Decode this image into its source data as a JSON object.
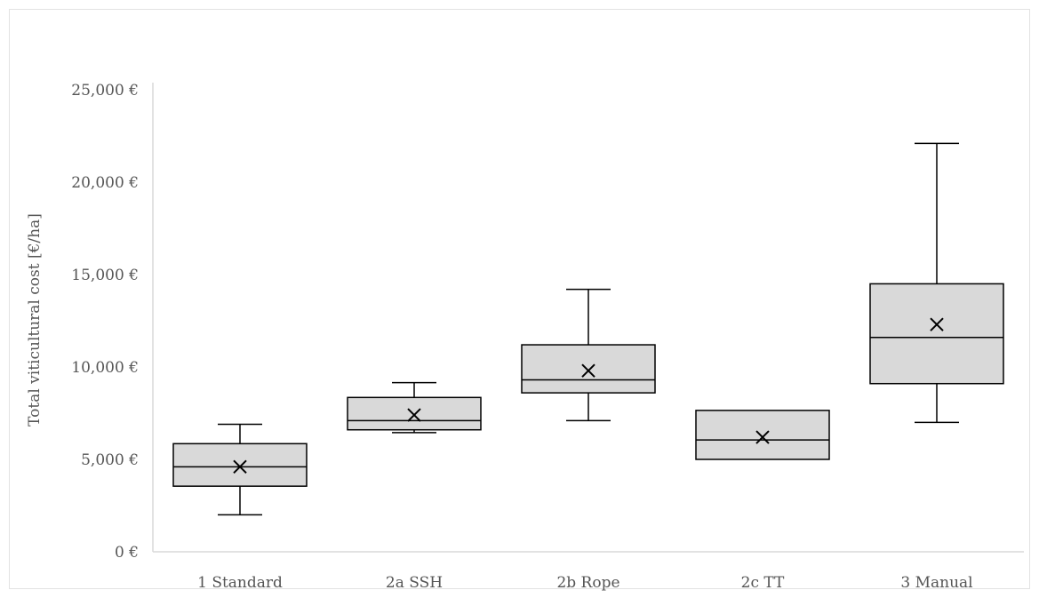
{
  "chart_data": {
    "type": "box",
    "title": "",
    "xlabel": "",
    "ylabel": "Total viticultural cost [€/ha]",
    "ylim": [
      0,
      25000
    ],
    "yticks": [
      0,
      5000,
      10000,
      15000,
      20000,
      25000
    ],
    "ytick_labels": [
      "0 €",
      "5,000 €",
      "10,000 €",
      "15,000 €",
      "20,000 €",
      "25,000 €"
    ],
    "grid": false,
    "categories": [
      "1 Standard",
      "2a SSH",
      "2b Rope",
      "2c TT",
      "3 Manual"
    ],
    "boxes": [
      {
        "category": "1 Standard",
        "min": 2000,
        "q1": 3550,
        "median": 4600,
        "q3": 5850,
        "max": 6900,
        "mean": 4600
      },
      {
        "category": "2a SSH",
        "min": 6450,
        "q1": 6600,
        "median": 7100,
        "q3": 8350,
        "max": 9150,
        "mean": 7400
      },
      {
        "category": "2b Rope",
        "min": 7100,
        "q1": 8600,
        "median": 9300,
        "q3": 11200,
        "max": 14200,
        "mean": 9800
      },
      {
        "category": "2c TT",
        "min": 5000,
        "q1": 5000,
        "median": 6050,
        "q3": 7650,
        "max": 7650,
        "mean": 6200
      },
      {
        "category": "3 Manual",
        "min": 7000,
        "q1": 9100,
        "median": 11600,
        "q3": 14500,
        "max": 22100,
        "mean": 12300
      }
    ],
    "colors": {
      "box_fill": "#d9d9d9",
      "stroke": "#000000",
      "axis": "#d9d9d9",
      "text": "#555555"
    }
  }
}
